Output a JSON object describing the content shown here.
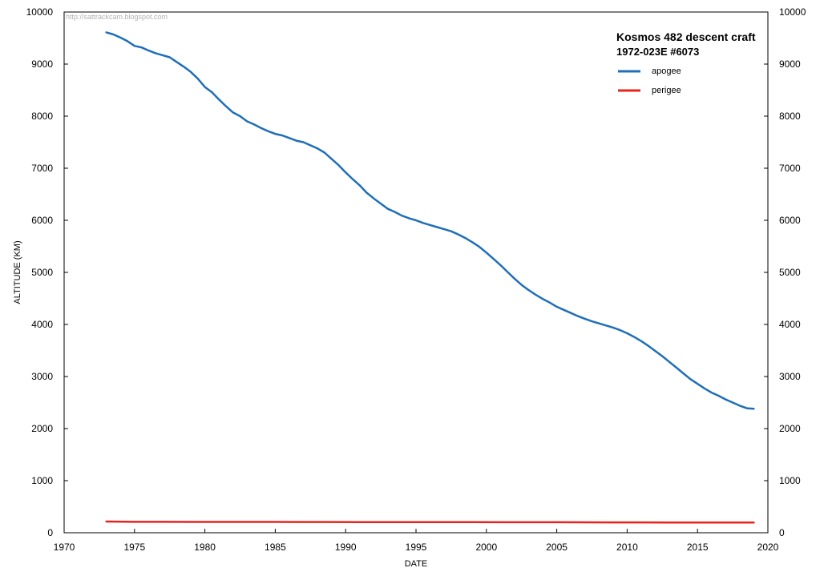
{
  "chart_data": {
    "type": "line",
    "title": "Kosmos 482 descent craft",
    "subtitle": "1972-023E  #6073",
    "watermark": "http://sattrackcam.blogspot.com",
    "xlabel": "DATE",
    "ylabel": "ALTITUDE  (KM)",
    "xlim": [
      1970,
      2020
    ],
    "ylim": [
      0,
      10000
    ],
    "x_ticks": [
      1970,
      1975,
      1980,
      1985,
      1990,
      1995,
      2000,
      2005,
      2010,
      2015,
      2020
    ],
    "y_ticks": [
      0,
      1000,
      2000,
      3000,
      4000,
      5000,
      6000,
      7000,
      8000,
      9000,
      10000
    ],
    "series": [
      {
        "name": "apogee",
        "color": "#1f6fb8",
        "x": [
          1973.0,
          1973.5,
          1974.0,
          1974.5,
          1975.0,
          1975.5,
          1976.0,
          1976.5,
          1977.0,
          1977.5,
          1978.0,
          1978.5,
          1979.0,
          1979.5,
          1980.0,
          1980.5,
          1981.0,
          1981.5,
          1982.0,
          1982.5,
          1983.0,
          1983.5,
          1984.0,
          1984.5,
          1985.0,
          1985.5,
          1986.0,
          1986.5,
          1987.0,
          1987.5,
          1988.0,
          1988.5,
          1989.0,
          1989.5,
          1990.0,
          1990.5,
          1991.0,
          1991.5,
          1992.0,
          1992.5,
          1993.0,
          1993.5,
          1994.0,
          1994.5,
          1995.0,
          1995.5,
          1996.0,
          1996.5,
          1997.0,
          1997.5,
          1998.0,
          1998.5,
          1999.0,
          1999.5,
          2000.0,
          2000.5,
          2001.0,
          2001.5,
          2002.0,
          2002.5,
          2003.0,
          2003.5,
          2004.0,
          2004.5,
          2005.0,
          2005.5,
          2006.0,
          2006.5,
          2007.0,
          2007.5,
          2008.0,
          2008.5,
          2009.0,
          2009.5,
          2010.0,
          2010.5,
          2011.0,
          2011.5,
          2012.0,
          2012.5,
          2013.0,
          2013.5,
          2014.0,
          2014.5,
          2015.0,
          2015.5,
          2016.0,
          2016.5,
          2017.0,
          2017.5,
          2018.0,
          2018.5,
          2019.0
        ],
        "values": [
          9610,
          9570,
          9510,
          9440,
          9350,
          9320,
          9260,
          9210,
          9170,
          9130,
          9040,
          8950,
          8850,
          8720,
          8560,
          8460,
          8320,
          8190,
          8070,
          8000,
          7900,
          7840,
          7770,
          7710,
          7660,
          7630,
          7580,
          7530,
          7500,
          7440,
          7380,
          7300,
          7180,
          7060,
          6920,
          6790,
          6670,
          6530,
          6420,
          6320,
          6220,
          6160,
          6090,
          6040,
          6000,
          5950,
          5910,
          5870,
          5830,
          5790,
          5730,
          5660,
          5580,
          5490,
          5380,
          5260,
          5140,
          5010,
          4880,
          4760,
          4660,
          4570,
          4490,
          4420,
          4340,
          4280,
          4220,
          4160,
          4110,
          4060,
          4020,
          3980,
          3940,
          3890,
          3830,
          3760,
          3680,
          3590,
          3490,
          3390,
          3280,
          3170,
          3060,
          2950,
          2860,
          2770,
          2690,
          2630,
          2560,
          2500,
          2440,
          2390,
          2380
        ]
      },
      {
        "name": "perigee",
        "color": "#e8231e",
        "x": [
          1973,
          1975,
          1977,
          1979,
          1981,
          1983,
          1985,
          1987,
          1989,
          1991,
          1993,
          1995,
          1997,
          1999,
          2001,
          2003,
          2005,
          2007,
          2009,
          2011,
          2013,
          2015,
          2017,
          2019
        ],
        "values": [
          215,
          210,
          210,
          208,
          208,
          207,
          207,
          206,
          206,
          205,
          205,
          204,
          204,
          203,
          202,
          202,
          201,
          200,
          199,
          198,
          197,
          196,
          195,
          195
        ]
      }
    ],
    "legend_position": "top-right",
    "grid": false
  }
}
